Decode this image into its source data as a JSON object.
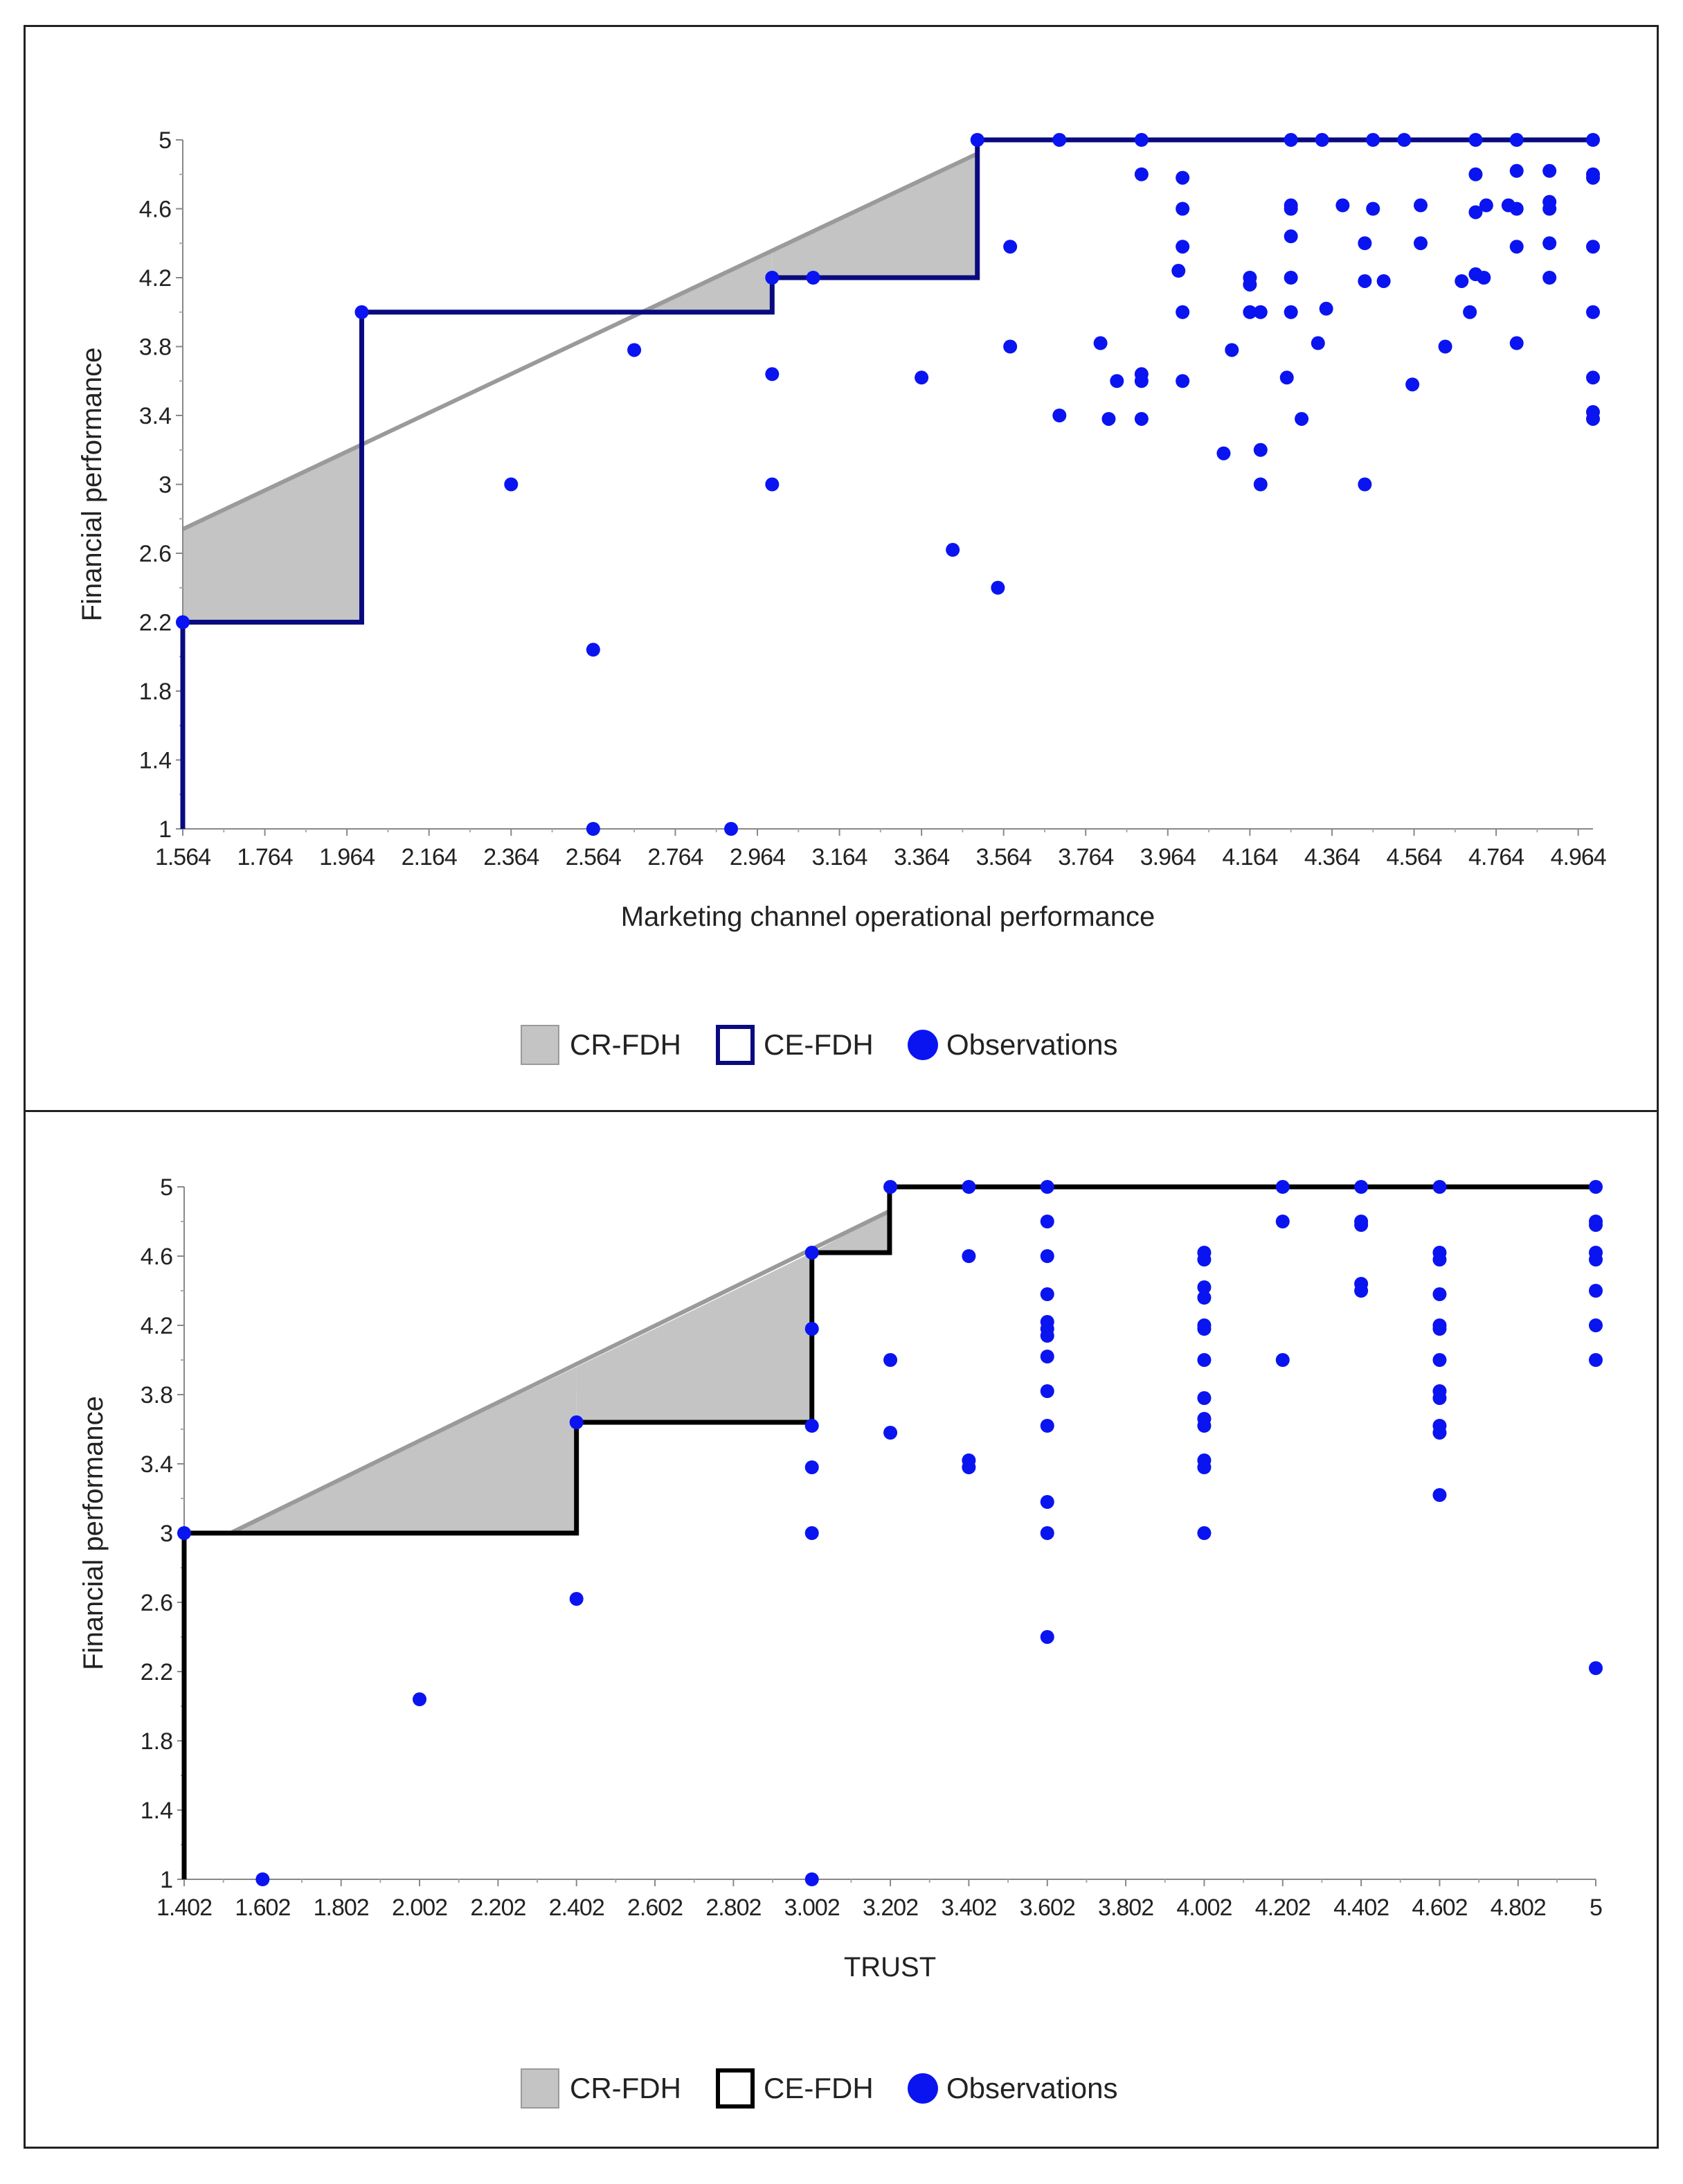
{
  "colors": {
    "observation": "#0a14f0",
    "frontier_top": "#0a0a80",
    "frontier_bottom": "#000000",
    "cr_fill": "#c4c4c4",
    "cr_line": "#9a9a9a"
  },
  "chart_data": [
    {
      "type": "scatter",
      "title": "",
      "xlabel": "Marketing channel operational performance",
      "ylabel": "Financial performance",
      "xlim": [
        1.564,
        5.0
      ],
      "ylim": [
        1,
        5
      ],
      "x_ticks": [
        "1.564",
        "1.764",
        "1.964",
        "2.164",
        "2.364",
        "2.564",
        "2.764",
        "2.964",
        "3.164",
        "3.364",
        "3.564",
        "3.764",
        "3.964",
        "4.164",
        "4.364",
        "4.564",
        "4.764",
        "4.964"
      ],
      "y_ticks": [
        "1",
        "1.4",
        "1.8",
        "2.2",
        "2.6",
        "3",
        "3.4",
        "3.8",
        "4.2",
        "4.6",
        "5"
      ],
      "legend": [
        "CR-FDH",
        "CE-FDH",
        "Observations"
      ],
      "legend_position": "bottom",
      "frontier_color": "#0a0a80",
      "ce_fdh": [
        [
          1.564,
          1
        ],
        [
          1.564,
          2.2
        ],
        [
          2.0,
          2.2
        ],
        [
          2.0,
          4.0
        ],
        [
          3.0,
          4.0
        ],
        [
          3.0,
          4.2
        ],
        [
          3.5,
          4.2
        ],
        [
          3.5,
          5.0
        ],
        [
          5.0,
          5.0
        ]
      ],
      "cr_fdh_line": [
        [
          1.564,
          2.74
        ],
        [
          3.5,
          4.92
        ]
      ],
      "cr_fdh_regions": [
        [
          [
            1.564,
            2.74
          ],
          [
            2.0,
            3.23
          ],
          [
            2.0,
            2.2
          ],
          [
            1.564,
            2.2
          ]
        ],
        [
          [
            2.68,
            4.0
          ],
          [
            3.0,
            4.36
          ],
          [
            3.0,
            4.0
          ]
        ],
        [
          [
            3.0,
            4.36
          ],
          [
            3.5,
            4.92
          ],
          [
            3.5,
            4.2
          ],
          [
            3.0,
            4.2
          ]
        ]
      ],
      "observations": [
        [
          1.564,
          2.2
        ],
        [
          2.0,
          4.0
        ],
        [
          2.364,
          3.0
        ],
        [
          2.564,
          2.04
        ],
        [
          2.564,
          1.0
        ],
        [
          2.664,
          3.78
        ],
        [
          2.9,
          1.0
        ],
        [
          3.0,
          4.2
        ],
        [
          3.0,
          3.64
        ],
        [
          3.0,
          3.0
        ],
        [
          3.1,
          4.2
        ],
        [
          3.364,
          3.62
        ],
        [
          3.44,
          2.62
        ],
        [
          3.5,
          5.0
        ],
        [
          3.55,
          2.4
        ],
        [
          3.58,
          4.38
        ],
        [
          3.58,
          3.8
        ],
        [
          3.7,
          5.0
        ],
        [
          3.7,
          3.4
        ],
        [
          3.8,
          3.82
        ],
        [
          3.82,
          3.38
        ],
        [
          3.84,
          3.6
        ],
        [
          3.9,
          5.0
        ],
        [
          3.9,
          4.8
        ],
        [
          3.9,
          3.64
        ],
        [
          3.9,
          3.6
        ],
        [
          3.9,
          3.38
        ],
        [
          3.99,
          4.24
        ],
        [
          4.0,
          4.78
        ],
        [
          4.0,
          4.6
        ],
        [
          4.0,
          4.38
        ],
        [
          4.0,
          4.0
        ],
        [
          4.0,
          3.6
        ],
        [
          4.1,
          3.18
        ],
        [
          4.12,
          3.78
        ],
        [
          4.164,
          4.2
        ],
        [
          4.164,
          4.16
        ],
        [
          4.164,
          4.0
        ],
        [
          4.19,
          4.0
        ],
        [
          4.19,
          3.2
        ],
        [
          4.19,
          3.0
        ],
        [
          4.264,
          5.0
        ],
        [
          4.264,
          4.62
        ],
        [
          4.264,
          4.6
        ],
        [
          4.264,
          4.44
        ],
        [
          4.264,
          4.2
        ],
        [
          4.264,
          4.0
        ],
        [
          4.254,
          3.62
        ],
        [
          4.29,
          3.38
        ],
        [
          4.34,
          5.0
        ],
        [
          4.35,
          4.02
        ],
        [
          4.33,
          3.82
        ],
        [
          4.39,
          4.62
        ],
        [
          4.464,
          5.0
        ],
        [
          4.444,
          4.4
        ],
        [
          4.444,
          4.18
        ],
        [
          4.464,
          4.6
        ],
        [
          4.49,
          4.18
        ],
        [
          4.444,
          3.0
        ],
        [
          4.54,
          5.0
        ],
        [
          4.58,
          4.62
        ],
        [
          4.58,
          4.4
        ],
        [
          4.56,
          3.58
        ],
        [
          4.68,
          4.18
        ],
        [
          4.64,
          3.8
        ],
        [
          4.714,
          5.0
        ],
        [
          4.714,
          4.8
        ],
        [
          4.714,
          4.58
        ],
        [
          4.714,
          4.22
        ],
        [
          4.7,
          4.0
        ],
        [
          4.74,
          4.62
        ],
        [
          4.734,
          4.2
        ],
        [
          4.814,
          5.0
        ],
        [
          4.814,
          4.82
        ],
        [
          4.794,
          4.62
        ],
        [
          4.814,
          4.6
        ],
        [
          4.814,
          4.38
        ],
        [
          4.814,
          3.82
        ],
        [
          4.894,
          4.82
        ],
        [
          4.894,
          4.64
        ],
        [
          4.894,
          4.6
        ],
        [
          4.894,
          4.4
        ],
        [
          4.894,
          4.2
        ],
        [
          5.0,
          5.0
        ],
        [
          5.0,
          4.8
        ],
        [
          5.0,
          4.78
        ],
        [
          5.0,
          4.38
        ],
        [
          5.0,
          4.0
        ],
        [
          5.0,
          3.62
        ],
        [
          5.0,
          3.42
        ],
        [
          5.0,
          3.38
        ]
      ]
    },
    {
      "type": "scatter",
      "title": "",
      "xlabel": "TRUST",
      "ylabel": "Financial performance",
      "xlim": [
        1.402,
        5.0
      ],
      "ylim": [
        1,
        5
      ],
      "x_ticks": [
        "1.402",
        "1.602",
        "1.802",
        "2.002",
        "2.202",
        "2.402",
        "2.602",
        "2.802",
        "3.002",
        "3.202",
        "3.402",
        "3.602",
        "3.802",
        "4.002",
        "4.202",
        "4.402",
        "4.602",
        "4.802",
        "5"
      ],
      "y_ticks": [
        "1",
        "1.4",
        "1.8",
        "2.2",
        "2.6",
        "3",
        "3.4",
        "3.8",
        "4.2",
        "4.6",
        "5"
      ],
      "legend": [
        "CR-FDH",
        "CE-FDH",
        "Observations"
      ],
      "legend_position": "bottom",
      "frontier_color": "#000000",
      "ce_fdh": [
        [
          1.402,
          1
        ],
        [
          1.402,
          3.0
        ],
        [
          2.402,
          3.0
        ],
        [
          2.402,
          3.64
        ],
        [
          3.002,
          3.64
        ],
        [
          3.002,
          4.62
        ],
        [
          3.2,
          4.62
        ],
        [
          3.2,
          5.0
        ],
        [
          5.0,
          5.0
        ]
      ],
      "cr_fdh_line": [
        [
          1.52,
          3.0
        ],
        [
          3.2,
          4.86
        ]
      ],
      "cr_fdh_regions": [
        [
          [
            1.52,
            3.0
          ],
          [
            2.402,
            3.96
          ],
          [
            2.402,
            3.0
          ]
        ],
        [
          [
            2.402,
            3.96
          ],
          [
            3.002,
            4.62
          ],
          [
            3.002,
            3.64
          ],
          [
            2.402,
            3.64
          ]
        ],
        [
          [
            3.002,
            4.62
          ],
          [
            3.2,
            4.86
          ],
          [
            3.2,
            4.62
          ]
        ]
      ],
      "observations": [
        [
          1.402,
          3.0
        ],
        [
          1.602,
          1.0
        ],
        [
          2.002,
          2.04
        ],
        [
          2.402,
          3.64
        ],
        [
          2.402,
          2.62
        ],
        [
          3.002,
          4.62
        ],
        [
          3.002,
          4.18
        ],
        [
          3.002,
          3.62
        ],
        [
          3.002,
          3.38
        ],
        [
          3.002,
          3.0
        ],
        [
          3.002,
          1.0
        ],
        [
          3.202,
          5.0
        ],
        [
          3.202,
          4.0
        ],
        [
          3.202,
          3.58
        ],
        [
          3.402,
          5.0
        ],
        [
          3.402,
          4.6
        ],
        [
          3.402,
          3.42
        ],
        [
          3.402,
          3.38
        ],
        [
          3.602,
          5.0
        ],
        [
          3.602,
          4.8
        ],
        [
          3.602,
          4.6
        ],
        [
          3.602,
          4.38
        ],
        [
          3.602,
          4.22
        ],
        [
          3.602,
          4.18
        ],
        [
          3.602,
          4.14
        ],
        [
          3.602,
          4.02
        ],
        [
          3.602,
          3.82
        ],
        [
          3.602,
          3.62
        ],
        [
          3.602,
          3.18
        ],
        [
          3.602,
          3.0
        ],
        [
          3.602,
          2.4
        ],
        [
          4.002,
          4.62
        ],
        [
          4.002,
          4.58
        ],
        [
          4.002,
          4.42
        ],
        [
          4.002,
          4.36
        ],
        [
          4.002,
          4.2
        ],
        [
          4.002,
          4.18
        ],
        [
          4.002,
          4.0
        ],
        [
          4.002,
          3.78
        ],
        [
          4.002,
          3.66
        ],
        [
          4.002,
          3.62
        ],
        [
          4.002,
          3.42
        ],
        [
          4.002,
          3.38
        ],
        [
          4.002,
          3.0
        ],
        [
          4.202,
          5.0
        ],
        [
          4.202,
          4.8
        ],
        [
          4.202,
          4.0
        ],
        [
          4.402,
          5.0
        ],
        [
          4.402,
          4.8
        ],
        [
          4.402,
          4.78
        ],
        [
          4.402,
          4.44
        ],
        [
          4.402,
          4.4
        ],
        [
          4.602,
          5.0
        ],
        [
          4.602,
          4.62
        ],
        [
          4.602,
          4.58
        ],
        [
          4.602,
          4.38
        ],
        [
          4.602,
          4.2
        ],
        [
          4.602,
          4.18
        ],
        [
          4.602,
          4.0
        ],
        [
          4.602,
          3.82
        ],
        [
          4.602,
          3.78
        ],
        [
          4.602,
          3.62
        ],
        [
          4.602,
          3.58
        ],
        [
          4.602,
          3.22
        ],
        [
          5.0,
          5.0
        ],
        [
          5.0,
          4.8
        ],
        [
          5.0,
          4.78
        ],
        [
          5.0,
          4.62
        ],
        [
          5.0,
          4.58
        ],
        [
          5.0,
          4.4
        ],
        [
          5.0,
          4.2
        ],
        [
          5.0,
          4.0
        ],
        [
          5.0,
          2.22
        ]
      ]
    }
  ]
}
